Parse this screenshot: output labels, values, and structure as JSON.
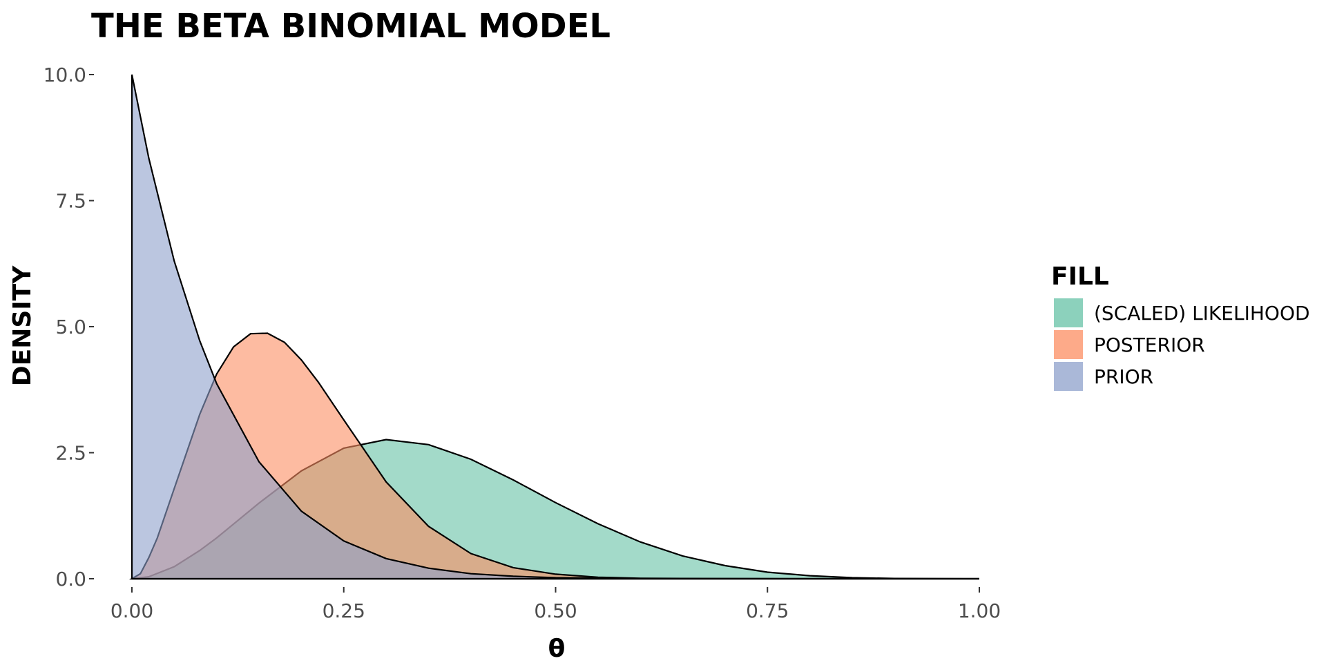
{
  "chart_data": {
    "type": "area",
    "title": "THE BETA BINOMIAL MODEL",
    "xlabel": "θ",
    "ylabel": "DENSITY",
    "xlim": [
      0,
      1
    ],
    "ylim": [
      0,
      10
    ],
    "x_ticks": [
      "0.00",
      "0.25",
      "0.50",
      "0.75",
      "1.00"
    ],
    "y_ticks": [
      "0.0",
      "2.5",
      "5.0",
      "7.5",
      "10.0"
    ],
    "grid": false,
    "legend": {
      "title": "FILL",
      "position": "right",
      "entries": [
        "(SCALED) LIKELIHOOD",
        "POSTERIOR",
        "PRIOR"
      ]
    },
    "series": [
      {
        "name": "(SCALED) LIKELIHOOD",
        "color": "#66c2a5",
        "x": [
          0,
          0.02,
          0.05,
          0.08,
          0.1,
          0.15,
          0.2,
          0.25,
          0.3,
          0.35,
          0.4,
          0.45,
          0.5,
          0.55,
          0.6,
          0.65,
          0.7,
          0.75,
          0.8,
          0.85,
          0.9,
          0.95,
          1.0
        ],
        "values": [
          0,
          0.04,
          0.24,
          0.56,
          0.81,
          1.5,
          2.14,
          2.59,
          2.76,
          2.66,
          2.37,
          1.96,
          1.51,
          1.09,
          0.73,
          0.45,
          0.26,
          0.13,
          0.06,
          0.02,
          0.006,
          0.001,
          0
        ]
      },
      {
        "name": "POSTERIOR",
        "color": "#fc8d62",
        "x": [
          0,
          0.01,
          0.02,
          0.03,
          0.05,
          0.08,
          0.1,
          0.12,
          0.14,
          0.16,
          0.18,
          0.2,
          0.22,
          0.25,
          0.3,
          0.35,
          0.4,
          0.45,
          0.5,
          0.55,
          0.6,
          0.7,
          0.8,
          1.0
        ],
        "values": [
          0,
          0.1,
          0.42,
          0.81,
          1.79,
          3.26,
          4.06,
          4.6,
          4.86,
          4.87,
          4.69,
          4.34,
          3.9,
          3.15,
          1.92,
          1.04,
          0.5,
          0.22,
          0.09,
          0.03,
          0.01,
          0.001,
          0,
          0
        ]
      },
      {
        "name": "PRIOR",
        "color": "#8da0cb",
        "x": [
          0,
          0.02,
          0.05,
          0.08,
          0.1,
          0.15,
          0.2,
          0.25,
          0.3,
          0.35,
          0.4,
          0.45,
          0.5,
          0.6,
          0.7,
          0.8,
          0.9,
          1.0
        ],
        "values": [
          10,
          8.34,
          6.3,
          4.72,
          3.87,
          2.32,
          1.34,
          0.75,
          0.4,
          0.21,
          0.1,
          0.05,
          0.02,
          0.004,
          0.001,
          0,
          0,
          0
        ]
      }
    ]
  }
}
